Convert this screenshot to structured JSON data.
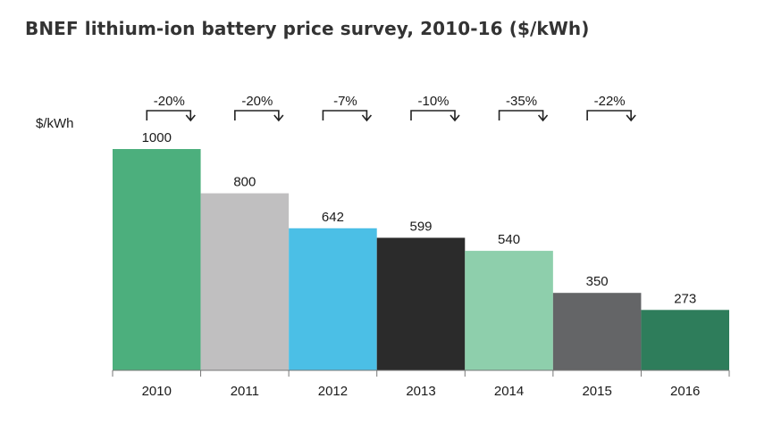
{
  "chart_data": {
    "type": "bar",
    "title": "BNEF lithium-ion battery price survey, 2010-16 ($/kWh)",
    "ylabel": "$/kWh",
    "xlabel": "",
    "ylim": [
      0,
      1000
    ],
    "grid": false,
    "legend": "none",
    "categories": [
      "2010",
      "2011",
      "2012",
      "2013",
      "2014",
      "2015",
      "2016"
    ],
    "values": [
      1000,
      800,
      642,
      599,
      540,
      350,
      273
    ],
    "data_labels": [
      "1000",
      "800",
      "642",
      "599",
      "540",
      "350",
      "273"
    ],
    "colors": [
      "#4caf7d",
      "#c0bfc0",
      "#4bbfe6",
      "#2b2b2b",
      "#8ecfac",
      "#646567",
      "#2e7d5b"
    ],
    "annotations": [
      "-20%",
      "-20%",
      "-7%",
      "-10%",
      "-35%",
      "-22%"
    ]
  }
}
